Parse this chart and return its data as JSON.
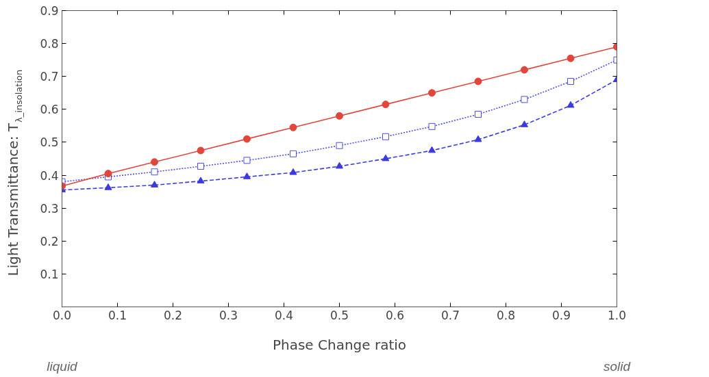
{
  "chart_data": {
    "type": "line",
    "xlabel": "Phase Change ratio",
    "ylabel": "Light Transmittance: T$_{λ_insolation}$",
    "x": [
      0,
      0.0833,
      0.1667,
      0.25,
      0.3333,
      0.4167,
      0.5,
      0.5833,
      0.6667,
      0.75,
      0.8333,
      0.9167,
      1
    ],
    "series": [
      {
        "color": "#e0463c",
        "marker": "circle",
        "line_style": "solid",
        "values": [
          0.367,
          0.405,
          0.44,
          0.475,
          0.51,
          0.545,
          0.58,
          0.615,
          0.65,
          0.685,
          0.72,
          0.755,
          0.79
        ]
      },
      {
        "color": "#4a4ee0",
        "marker": "square",
        "line_style": "dotted",
        "values": [
          0.38,
          0.395,
          0.41,
          0.427,
          0.445,
          0.465,
          0.49,
          0.517,
          0.548,
          0.585,
          0.63,
          0.685,
          0.75
        ]
      },
      {
        "color": "#3a3ae0",
        "marker": "triangle",
        "line_style": "dashed",
        "values": [
          0.355,
          0.362,
          0.37,
          0.382,
          0.395,
          0.408,
          0.427,
          0.45,
          0.475,
          0.508,
          0.553,
          0.612,
          0.69
        ]
      }
    ],
    "xlim": [
      0,
      1
    ],
    "xticks": [
      {
        "value": 0,
        "label": "0.0"
      },
      0.1,
      0.2,
      0.3,
      0.4,
      0.5,
      0.6,
      0.7,
      0.8,
      0.9,
      {
        "value": 1,
        "label": "1.0"
      }
    ],
    "ylim": [
      0,
      0.9
    ],
    "yticks": [
      0.1,
      0.2,
      0.3,
      0.4,
      0.5,
      0.6,
      0.7,
      0.8,
      0.9
    ],
    "annotations": [
      "liquid",
      "solid"
    ],
    "grid": false
  }
}
